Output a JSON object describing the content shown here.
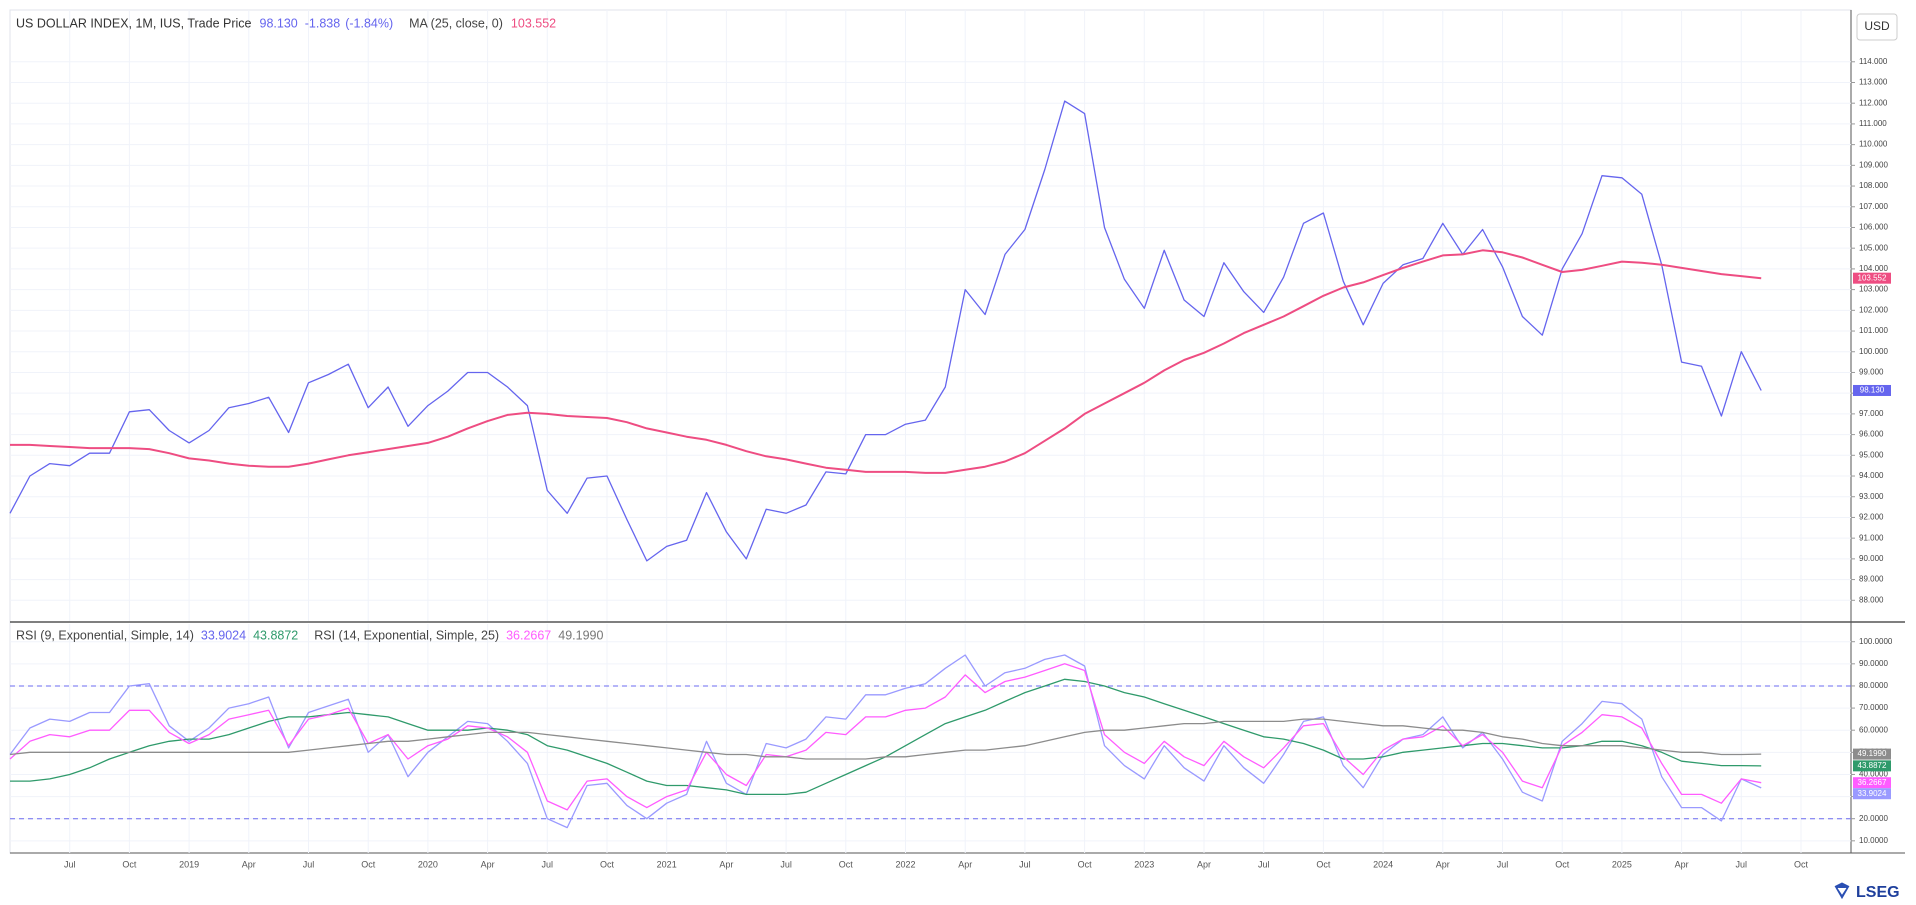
{
  "currency": "USD",
  "brand": "LSEG",
  "chart_data": [
    {
      "type": "line",
      "series": [
        {
          "name": "US DOLLAR INDEX, 1M, IUS, Trade Price",
          "color": "#6565ee",
          "last_label": "98.130",
          "change": "-1.838",
          "change_percent": "(-1.84%)",
          "values": [
            92.2,
            94.0,
            94.6,
            94.5,
            95.1,
            95.1,
            97.1,
            97.2,
            96.2,
            95.6,
            96.2,
            97.3,
            97.5,
            97.8,
            96.1,
            98.5,
            98.9,
            99.4,
            97.3,
            98.3,
            96.4,
            97.4,
            98.1,
            99.0,
            99.0,
            98.3,
            97.4,
            93.3,
            92.2,
            93.9,
            94.0,
            91.9,
            89.9,
            90.6,
            90.9,
            93.2,
            91.3,
            90.0,
            92.4,
            92.2,
            92.6,
            94.2,
            94.1,
            96.0,
            96.0,
            96.5,
            96.7,
            98.3,
            103.0,
            101.8,
            104.7,
            105.9,
            108.8,
            112.1,
            111.5,
            106.0,
            103.5,
            102.1,
            104.9,
            102.5,
            101.7,
            104.3,
            102.9,
            101.9,
            103.6,
            106.2,
            106.7,
            103.4,
            101.3,
            103.3,
            104.2,
            104.5,
            106.2,
            104.7,
            105.9,
            104.1,
            101.7,
            100.8,
            104.0,
            105.7,
            108.5,
            108.4,
            107.6,
            104.2,
            99.5,
            99.3,
            96.9,
            100.0,
            98.13,
            null,
            null
          ]
        },
        {
          "name": "MA (25, close, 0)",
          "color": "#ee4d82",
          "last_label": "103.552",
          "values": [
            95.5,
            95.5,
            95.45,
            95.4,
            95.35,
            95.35,
            95.35,
            95.3,
            95.1,
            94.85,
            94.75,
            94.6,
            94.5,
            94.45,
            94.45,
            94.6,
            94.8,
            95.0,
            95.15,
            95.3,
            95.45,
            95.6,
            95.9,
            96.3,
            96.65,
            96.95,
            97.05,
            97.0,
            96.9,
            96.85,
            96.8,
            96.6,
            96.3,
            96.1,
            95.9,
            95.75,
            95.5,
            95.2,
            94.95,
            94.8,
            94.6,
            94.4,
            94.3,
            94.2,
            94.2,
            94.2,
            94.15,
            94.15,
            94.3,
            94.45,
            94.7,
            95.1,
            95.7,
            96.3,
            97.0,
            97.5,
            98.0,
            98.5,
            99.1,
            99.6,
            99.95,
            100.4,
            100.9,
            101.3,
            101.7,
            102.2,
            102.7,
            103.1,
            103.35,
            103.7,
            104.05,
            104.35,
            104.65,
            104.7,
            104.9,
            104.8,
            104.55,
            104.2,
            103.85,
            103.95,
            104.15,
            104.35,
            104.3,
            104.2,
            104.05,
            103.9,
            103.75,
            103.65,
            103.552,
            null,
            null
          ]
        }
      ],
      "ylim": [
        87,
        116.5
      ],
      "yticks": [
        {
          "value": 88,
          "label": "88.000"
        },
        {
          "value": 89,
          "label": "89.000"
        },
        {
          "value": 90,
          "label": "90.000"
        },
        {
          "value": 91,
          "label": "91.000"
        },
        {
          "value": 92,
          "label": "92.000"
        },
        {
          "value": 93,
          "label": "93.000"
        },
        {
          "value": 94,
          "label": "94.000"
        },
        {
          "value": 95,
          "label": "95.000"
        },
        {
          "value": 96,
          "label": "96.000"
        },
        {
          "value": 97,
          "label": "97.000"
        },
        {
          "value": 98,
          "label": "98.000"
        },
        {
          "value": 99,
          "label": "99.000"
        },
        {
          "value": 100,
          "label": "100.000"
        },
        {
          "value": 101,
          "label": "101.000"
        },
        {
          "value": 102,
          "label": "102.000"
        },
        {
          "value": 103,
          "label": "103.000"
        },
        {
          "value": 104,
          "label": "104.000"
        },
        {
          "value": 105,
          "label": "105.000"
        },
        {
          "value": 106,
          "label": "106.000"
        },
        {
          "value": 107,
          "label": "107.000"
        },
        {
          "value": 108,
          "label": "108.000"
        },
        {
          "value": 109,
          "label": "109.000"
        },
        {
          "value": 110,
          "label": "110.000"
        },
        {
          "value": 111,
          "label": "111.000"
        },
        {
          "value": 112,
          "label": "112.000"
        },
        {
          "value": 113,
          "label": "113.000"
        },
        {
          "value": 114,
          "label": "114.000"
        }
      ],
      "grid": true
    },
    {
      "type": "line",
      "indicator_names": [
        "RSI (9, Exponential, Simple, 14)",
        "RSI (14, Exponential, Simple, 25)"
      ],
      "categories": [
        null,
        null,
        null,
        "Jul",
        null,
        null,
        "Oct",
        null,
        null,
        "2019",
        null,
        null,
        "Apr",
        null,
        null,
        "Jul",
        null,
        null,
        "Oct",
        null,
        null,
        "2020",
        null,
        null,
        "Apr",
        null,
        null,
        "Jul",
        null,
        null,
        "Oct",
        null,
        null,
        "2021",
        null,
        null,
        "Apr",
        null,
        null,
        "Jul",
        null,
        null,
        "Oct",
        null,
        null,
        "2022",
        null,
        null,
        "Apr",
        null,
        null,
        "Jul",
        null,
        null,
        "Oct",
        null,
        null,
        "2023",
        null,
        null,
        "Apr",
        null,
        null,
        "Jul",
        null,
        null,
        "Oct",
        null,
        null,
        "2024",
        null,
        null,
        "Apr",
        null,
        null,
        "Jul",
        null,
        null,
        "Oct",
        null,
        null,
        "2025",
        null,
        null,
        "Apr",
        null,
        null,
        "Jul",
        null,
        null,
        "Oct"
      ],
      "series": [
        {
          "color": "#9a9aff",
          "last_label": "33.9024",
          "values": [
            49,
            61,
            65,
            64,
            68,
            68,
            80,
            81,
            62,
            55,
            61,
            70,
            72,
            75,
            52,
            68,
            71,
            74,
            50,
            58,
            39,
            50,
            57,
            64,
            63,
            55,
            45,
            20,
            16,
            35,
            36,
            26,
            20,
            27,
            31,
            55,
            36,
            31,
            54,
            52,
            56,
            66,
            65,
            76,
            76,
            79,
            81,
            88,
            94,
            80,
            86,
            88,
            92,
            94,
            89,
            53,
            44,
            38,
            53,
            43,
            37,
            53,
            43,
            36,
            49,
            64,
            66,
            44,
            34,
            49,
            56,
            58,
            66,
            52,
            59,
            47,
            32,
            28,
            55,
            63,
            73,
            72,
            65,
            39,
            25,
            25,
            19,
            38,
            33.9024,
            null,
            null
          ]
        },
        {
          "color": "#2f9a6b",
          "last_label": "43.8872",
          "values": [
            37,
            37,
            38,
            40,
            43,
            47,
            50,
            53,
            55,
            56,
            56,
            58,
            61,
            64,
            66,
            66,
            67,
            68,
            67,
            66,
            63,
            60,
            60,
            60,
            61,
            60,
            58,
            53,
            51,
            48,
            45,
            41,
            37,
            35,
            35,
            34,
            33,
            31,
            31,
            31,
            32,
            36,
            40,
            44,
            48,
            53,
            58,
            63,
            66,
            69,
            73,
            77,
            80,
            83,
            82,
            80,
            77,
            75,
            72,
            69,
            66,
            63,
            60,
            57,
            56,
            54,
            51,
            47,
            47,
            48,
            50,
            51,
            52,
            53,
            54,
            54,
            53,
            52,
            52,
            53,
            55,
            55,
            53,
            50,
            46,
            45,
            44,
            44,
            43.8872,
            null,
            null
          ]
        },
        {
          "color": "#ff5cff",
          "last_label": "36.2667",
          "values": [
            47,
            55,
            58,
            57,
            60,
            60,
            69,
            69,
            59,
            54,
            58,
            65,
            67,
            69,
            53,
            65,
            67,
            70,
            54,
            58,
            47,
            53,
            56,
            62,
            61,
            57,
            50,
            28,
            24,
            37,
            38,
            30,
            25,
            30,
            33,
            50,
            40,
            35,
            49,
            48,
            51,
            59,
            58,
            66,
            66,
            69,
            70,
            75,
            85,
            77,
            82,
            84,
            87,
            90,
            87,
            58,
            50,
            45,
            55,
            48,
            44,
            55,
            48,
            43,
            52,
            62,
            63,
            48,
            40,
            51,
            56,
            57,
            62,
            53,
            58,
            50,
            37,
            34,
            53,
            59,
            67,
            66,
            61,
            45,
            31,
            31,
            27,
            38,
            36.2667,
            null,
            null
          ]
        },
        {
          "color": "#8c8c8c",
          "last_label": "49.1990",
          "values": [
            49,
            50,
            50,
            50,
            50,
            50,
            50,
            50,
            50,
            50,
            50,
            50,
            50,
            50,
            50,
            51,
            52,
            53,
            54,
            55,
            55,
            56,
            57,
            58,
            59,
            59,
            59,
            58,
            57,
            56,
            55,
            54,
            53,
            52,
            51,
            50,
            49,
            49,
            48,
            48,
            47,
            47,
            47,
            47,
            48,
            48,
            49,
            50,
            51,
            51,
            52,
            53,
            55,
            57,
            59,
            60,
            60,
            61,
            62,
            63,
            63,
            64,
            64,
            64,
            64,
            65,
            65,
            64,
            63,
            62,
            62,
            61,
            60,
            60,
            59,
            57,
            56,
            54,
            53,
            53,
            53,
            53,
            52,
            51,
            50,
            50,
            49,
            49,
            49.199,
            null,
            null
          ]
        }
      ],
      "hlines": [
        80,
        20
      ],
      "ylim": [
        4.5,
        108
      ],
      "yticks": [
        {
          "value": 10,
          "label": "10.0000"
        },
        {
          "value": 20,
          "label": "20.0000"
        },
        {
          "value": 30,
          "label": "30.0000"
        },
        {
          "value": 40,
          "label": "40.0000"
        },
        {
          "value": 50,
          "label": "50.0000"
        },
        {
          "value": 60,
          "label": "60.0000"
        },
        {
          "value": 70,
          "label": "70.0000"
        },
        {
          "value": 80,
          "label": "80.0000"
        },
        {
          "value": 90,
          "label": "90.0000"
        },
        {
          "value": 100,
          "label": "100.0000"
        }
      ],
      "grid": true
    }
  ]
}
